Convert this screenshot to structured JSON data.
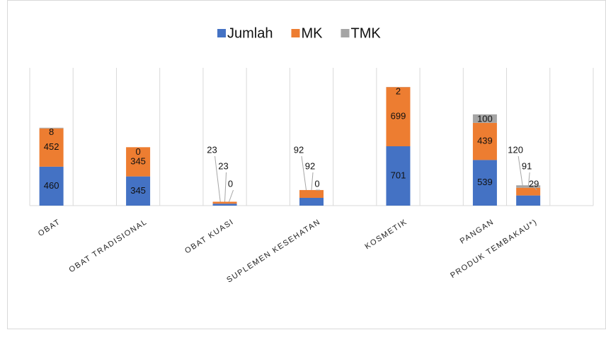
{
  "chart_data": {
    "type": "stacked_bar",
    "categories": [
      "OBAT",
      null,
      "OBAT TRADISIONAL",
      null,
      "OBAT KUASI",
      null,
      "SUPLEMEN KESEHATAN",
      null,
      "KOSMETIK",
      null,
      "PANGAN",
      "PRODUK TEMBAKAU*)",
      null
    ],
    "series": [
      {
        "name": "Jumlah",
        "color": "#4472c4",
        "values": [
          460,
          null,
          345,
          null,
          23,
          null,
          92,
          null,
          701,
          null,
          539,
          120,
          null
        ]
      },
      {
        "name": "MK",
        "color": "#ed7d31",
        "values": [
          452,
          null,
          345,
          null,
          23,
          null,
          92,
          null,
          699,
          null,
          439,
          91,
          null
        ]
      },
      {
        "name": "TMK",
        "color": "#a5a5a5",
        "values": [
          8,
          null,
          0,
          null,
          0,
          null,
          0,
          null,
          2,
          null,
          100,
          29,
          null
        ]
      }
    ],
    "legend": "top",
    "grid": "vertical"
  }
}
